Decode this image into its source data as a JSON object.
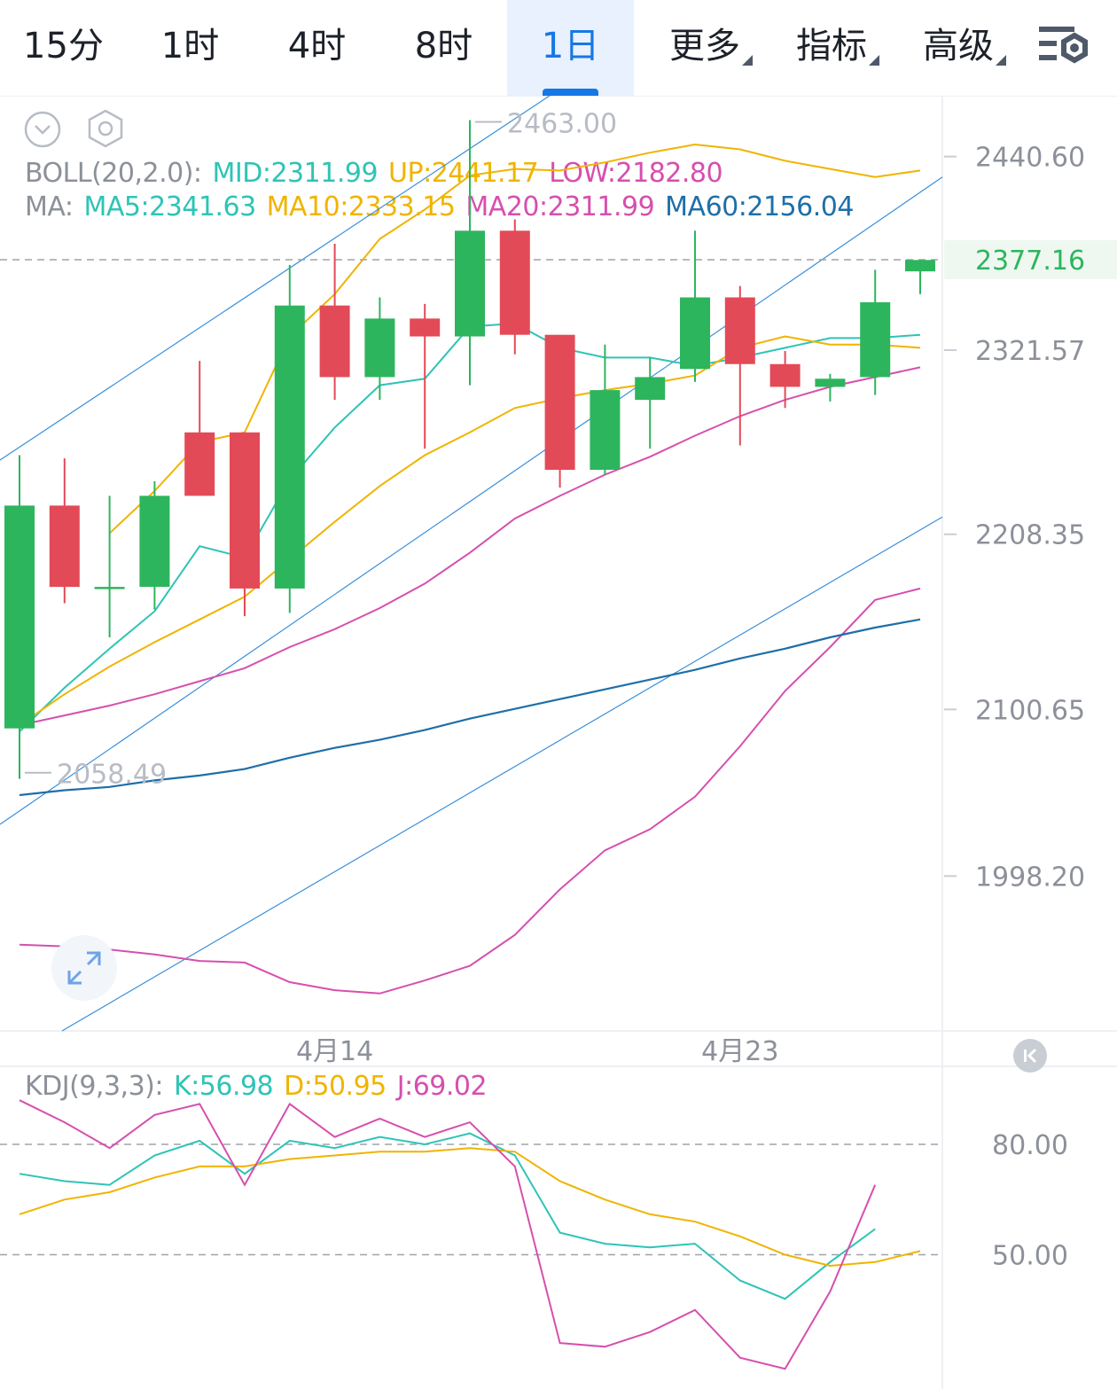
{
  "tabs": [
    {
      "label": "15分",
      "active": false
    },
    {
      "label": "1时",
      "active": false
    },
    {
      "label": "4时",
      "active": false
    },
    {
      "label": "8时",
      "active": false
    },
    {
      "label": "1日",
      "active": true
    },
    {
      "label": "更多",
      "active": false,
      "dropdown": true
    },
    {
      "label": "指标",
      "active": false,
      "dropdown": true
    },
    {
      "label": "高级",
      "active": false,
      "dropdown": true
    }
  ],
  "icons": {
    "collapse": "chevron-down-circle-icon",
    "settings_small": "hexagon-settings-icon",
    "settings_top": "chart-settings-icon",
    "expand": "expand-arrows-icon",
    "back_latest": "skip-back-icon"
  },
  "colors": {
    "up": "#2db55d",
    "down": "#e34a57",
    "mid": "#2ec4b6",
    "upper": "#f0b400",
    "lower": "#d64fae",
    "ma60": "#1e6fa8",
    "channel": "#3b8fd9",
    "k": "#2ec4b6",
    "d": "#f0b400",
    "j": "#d64fae",
    "active_tab": "#1677e5",
    "current_price": "#2db55d"
  },
  "legend": {
    "boll": {
      "prefix": "BOLL(20,2.0):",
      "mid": "MID:2311.99",
      "up": "UP:2441.17",
      "low": "LOW:2182.80"
    },
    "ma": {
      "prefix": "MA:",
      "ma5": "MA5:2341.63",
      "ma10": "MA10:2333.15",
      "ma20": "MA20:2311.99",
      "ma60": "MA60:2156.04"
    },
    "kdj": {
      "prefix": "KDJ(9,3,3):",
      "k": "K:56.98",
      "d": "D:50.95",
      "j": "J:69.02"
    }
  },
  "chart_data": [
    {
      "type": "candlestick",
      "x_ticks": [
        {
          "index": 7,
          "label": "4月14"
        },
        {
          "index": 16,
          "label": "4月23"
        }
      ],
      "y_ticks": [
        "2440.60",
        "2321.57",
        "2208.35",
        "2100.65",
        "1998.20"
      ],
      "ylim": [
        1903,
        2478
      ],
      "grid": false,
      "current_price": {
        "value": 2377.16,
        "label": "2377.16"
      },
      "annotations": {
        "high": {
          "index": 10,
          "value": 2463.0,
          "label": "2463.00"
        },
        "low": {
          "index": 0,
          "value": 2058.49,
          "label": "2058.49"
        }
      },
      "candles": [
        {
          "o": 2089,
          "c": 2226,
          "h": 2257,
          "l": 2058
        },
        {
          "o": 2226,
          "c": 2176,
          "h": 2255,
          "l": 2166
        },
        {
          "o": 2176,
          "c": 2176,
          "h": 2232,
          "l": 2145
        },
        {
          "o": 2176,
          "c": 2232,
          "h": 2241,
          "l": 2162
        },
        {
          "o": 2271,
          "c": 2232,
          "h": 2315,
          "l": 2232
        },
        {
          "o": 2271,
          "c": 2175,
          "h": 2271,
          "l": 2158
        },
        {
          "o": 2175,
          "c": 2349,
          "h": 2374,
          "l": 2160
        },
        {
          "o": 2349,
          "c": 2305,
          "h": 2387,
          "l": 2291
        },
        {
          "o": 2305,
          "c": 2341,
          "h": 2354,
          "l": 2291
        },
        {
          "o": 2341,
          "c": 2330,
          "h": 2350,
          "l": 2261
        },
        {
          "o": 2330,
          "c": 2395,
          "h": 2463,
          "l": 2300
        },
        {
          "o": 2395,
          "c": 2331,
          "h": 2402,
          "l": 2319
        },
        {
          "o": 2331,
          "c": 2248,
          "h": 2331,
          "l": 2237
        },
        {
          "o": 2248,
          "c": 2297,
          "h": 2325,
          "l": 2245
        },
        {
          "o": 2291,
          "c": 2305,
          "h": 2317,
          "l": 2261
        },
        {
          "o": 2310,
          "c": 2354,
          "h": 2395,
          "l": 2302
        },
        {
          "o": 2354,
          "c": 2313,
          "h": 2361,
          "l": 2263
        },
        {
          "o": 2313,
          "c": 2299,
          "h": 2321,
          "l": 2286
        },
        {
          "o": 2299,
          "c": 2304,
          "h": 2307,
          "l": 2290
        },
        {
          "o": 2305,
          "c": 2351,
          "h": 2371,
          "l": 2294
        },
        {
          "o": 2370,
          "c": 2377,
          "h": 2377,
          "l": 2356
        }
      ],
      "series": [
        {
          "name": "MA5",
          "values": [
            2087,
            2114,
            2138,
            2161,
            2201,
            2194,
            2242,
            2274,
            2300,
            2304,
            2336,
            2338,
            2323,
            2317,
            2317,
            2312,
            2317,
            2323,
            2329,
            2329,
            2331
          ]
        },
        {
          "name": "MA10",
          "values": [
            2091,
            2110,
            2127,
            2142,
            2156,
            2170,
            2193,
            2216,
            2238,
            2257,
            2271,
            2286,
            2292,
            2297,
            2301,
            2306,
            2323,
            2330,
            2325,
            2325,
            2323
          ]
        },
        {
          "name": "MA20",
          "values": [
            null,
            null,
            2209,
            2235,
            2265,
            2271,
            2330,
            2356,
            2390,
            2408,
            2429,
            2433,
            2432,
            2437,
            2443,
            2448,
            2445,
            2438,
            2433,
            2428,
            2432
          ]
        },
        {
          "name": "UP",
          "values": [
            2091,
            2097,
            2103,
            2110,
            2118,
            2126,
            2139,
            2150,
            2163,
            2178,
            2197,
            2218,
            2232,
            2245,
            2256,
            2269,
            2281,
            2291,
            2299,
            2305,
            2311
          ]
        },
        {
          "name": "LOW",
          "values": [
            1956,
            1955,
            1953,
            1950,
            1946,
            1945,
            1933,
            1928,
            1926,
            1934,
            1943,
            1962,
            1990,
            2014,
            2027,
            2047,
            2078,
            2112,
            2139,
            2168,
            2175
          ]
        },
        {
          "name": "MA60",
          "values": [
            2048,
            2051,
            2053,
            2057,
            2060,
            2064,
            2071,
            2077,
            2082,
            2088,
            2095,
            2101,
            2107,
            2113,
            2119,
            2125,
            2132,
            2138,
            2145,
            2151,
            2156
          ]
        }
      ]
    },
    {
      "type": "line",
      "y_ticks": [
        "80.00",
        "50.00"
      ],
      "ylim": [
        13.5,
        100
      ],
      "series": [
        {
          "name": "K",
          "values": [
            72,
            70,
            69,
            77,
            81,
            72,
            81,
            79,
            82,
            80,
            83,
            77,
            56,
            53,
            52,
            53,
            43,
            38,
            48,
            57
          ]
        },
        {
          "name": "D",
          "values": [
            61,
            65,
            67,
            71,
            74,
            74,
            76,
            77,
            78,
            78,
            79,
            78,
            70,
            65,
            61,
            59,
            55,
            50,
            47,
            48,
            51
          ]
        },
        {
          "name": "J",
          "values": [
            92,
            86,
            79,
            88,
            91,
            69,
            91,
            82,
            87,
            82,
            86,
            74,
            26,
            25,
            29,
            35,
            22,
            19,
            40,
            69
          ]
        }
      ]
    }
  ]
}
